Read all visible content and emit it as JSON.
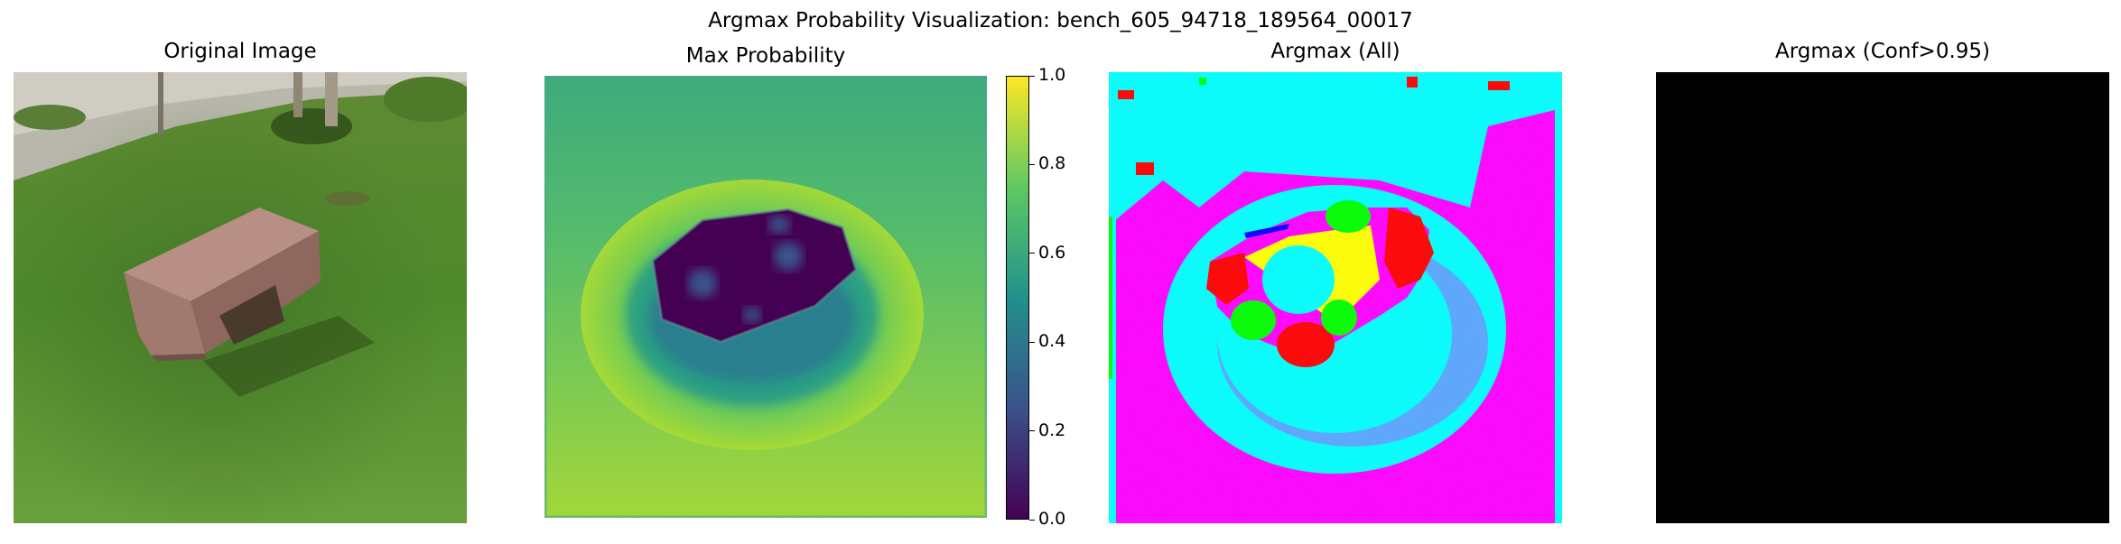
{
  "figure": {
    "suptitle": "Argmax Probability Visualization: bench_605_94718_189564_00017"
  },
  "panels": {
    "original": {
      "title": "Original Image"
    },
    "maxprob": {
      "title": "Max Probability"
    },
    "argmax_all": {
      "title": "Argmax (All)"
    },
    "argmax_conf": {
      "title": "Argmax (Conf>0.95)"
    }
  },
  "colors": {
    "viridis": [
      "#440154",
      "#3b528b",
      "#21918c",
      "#5ec962",
      "#fde725"
    ],
    "magenta": "#ff00ff",
    "cyan": "#00ffff",
    "yellow": "#ffff00",
    "red": "#ff0000",
    "green": "#00ff00",
    "blue": "#0000ff",
    "black": "#000000"
  },
  "chart_data": {
    "type": "heatmap",
    "colorbar": {
      "colormap": "viridis",
      "range": [
        0.0,
        1.0
      ],
      "ticks": [
        "0.0",
        "0.2",
        "0.4",
        "0.6",
        "0.8",
        "1.0"
      ]
    }
  }
}
